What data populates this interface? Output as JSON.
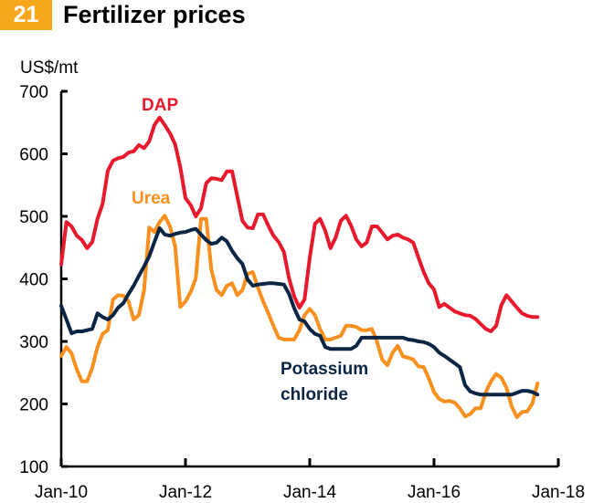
{
  "header": {
    "number": "21",
    "title": "Fertilizer prices"
  },
  "colors": {
    "badge": "#f5a81c",
    "dap": "#e8192c",
    "urea": "#f7901e",
    "potash": "#0b2545"
  },
  "chart_data": {
    "type": "line",
    "title": "Fertilizer prices",
    "ylabel": "US$/mt",
    "xlabel": "",
    "ylim": [
      100,
      700
    ],
    "yticks": [
      100,
      200,
      300,
      400,
      500,
      600,
      700
    ],
    "ytick_labels": [
      "100",
      "200",
      "300",
      "400",
      "500",
      "600",
      "700"
    ],
    "xlim_months_from_jan10": [
      0,
      96
    ],
    "xticks_months_from_jan10": [
      0,
      24,
      48,
      72,
      96
    ],
    "xtick_labels": [
      "Jan-10",
      "Jan-12",
      "Jan-14",
      "Jan-16",
      "Jan-18"
    ],
    "x_start": "Jan-10",
    "x_frequency": "monthly",
    "grid": false,
    "legend": "inline labels",
    "series": [
      {
        "name": "DAP",
        "label": "DAP",
        "color": "#e8192c",
        "values": [
          423,
          491,
          484,
          469,
          462,
          449,
          459,
          496,
          520,
          573,
          589,
          593,
          595,
          602,
          604,
          614,
          609,
          620,
          646,
          658,
          646,
          633,
          615,
          579,
          529,
          518,
          500,
          513,
          553,
          561,
          560,
          558,
          572,
          572,
          532,
          493,
          482,
          481,
          503,
          503,
          485,
          469,
          459,
          443,
          401,
          372,
          354,
          367,
          434,
          488,
          496,
          477,
          449,
          466,
          493,
          501,
          485,
          463,
          452,
          458,
          484,
          484,
          474,
          463,
          469,
          471,
          466,
          463,
          458,
          434,
          411,
          393,
          383,
          355,
          360,
          354,
          348,
          345,
          342,
          341,
          336,
          328,
          320,
          316,
          325,
          358,
          374,
          364,
          354,
          345,
          341,
          339,
          339
        ]
      },
      {
        "name": "Urea",
        "label": "Urea",
        "color": "#f7901e",
        "values": [
          277,
          291,
          281,
          255,
          236,
          236,
          258,
          291,
          312,
          318,
          367,
          374,
          373,
          364,
          335,
          342,
          382,
          482,
          475,
          491,
          501,
          484,
          452,
          355,
          364,
          379,
          401,
          496,
          496,
          415,
          382,
          374,
          389,
          393,
          374,
          382,
          408,
          411,
          386,
          364,
          345,
          325,
          306,
          303,
          303,
          303,
          318,
          342,
          352,
          342,
          320,
          303,
          303,
          306,
          309,
          325,
          325,
          323,
          318,
          318,
          320,
          299,
          271,
          262,
          282,
          293,
          276,
          274,
          271,
          260,
          259,
          241,
          219,
          208,
          204,
          205,
          202,
          193,
          180,
          184,
          193,
          193,
          219,
          236,
          248,
          242,
          226,
          196,
          179,
          187,
          188,
          201,
          233
        ]
      },
      {
        "name": "Potassium chloride",
        "label": "Potassium chloride",
        "color": "#0b2545",
        "values": [
          357,
          335,
          313,
          316,
          316,
          318,
          320,
          345,
          339,
          335,
          342,
          354,
          361,
          376,
          389,
          405,
          420,
          436,
          459,
          481,
          471,
          469,
          472,
          474,
          475,
          478,
          480,
          471,
          462,
          456,
          458,
          466,
          460,
          445,
          433,
          424,
          399,
          389,
          391,
          392,
          393,
          393,
          392,
          391,
          376,
          353,
          335,
          332,
          320,
          312,
          309,
          291,
          288,
          288,
          288,
          288,
          288,
          293,
          306,
          306,
          306,
          306,
          306,
          306,
          306,
          306,
          306,
          303,
          302,
          300,
          299,
          296,
          291,
          282,
          277,
          271,
          265,
          259,
          230,
          220,
          217,
          215,
          215,
          215,
          215,
          215,
          215,
          215,
          218,
          221,
          221,
          219,
          215
        ]
      }
    ]
  }
}
